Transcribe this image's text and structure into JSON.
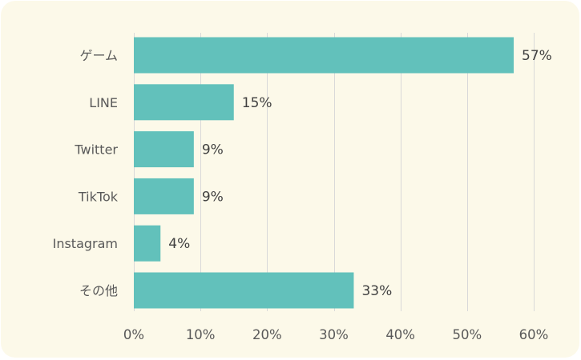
{
  "chart_data": {
    "type": "bar",
    "orientation": "horizontal",
    "categories": [
      "ゲーム",
      "LINE",
      "Twitter",
      "TikTok",
      "Instagram",
      "その他"
    ],
    "values": [
      57,
      15,
      9,
      9,
      4,
      33
    ],
    "value_labels": [
      "57%",
      "15%",
      "9%",
      "9%",
      "4%",
      "33%"
    ],
    "xlim": [
      0,
      60
    ],
    "x_ticks": [
      0,
      10,
      20,
      30,
      40,
      50,
      60
    ],
    "x_tick_labels": [
      "0%",
      "10%",
      "20%",
      "30%",
      "40%",
      "50%",
      "60%"
    ],
    "grid": true,
    "legend": "none",
    "bar_color": "#62c1bb",
    "background_color": "#fcf9e9"
  }
}
